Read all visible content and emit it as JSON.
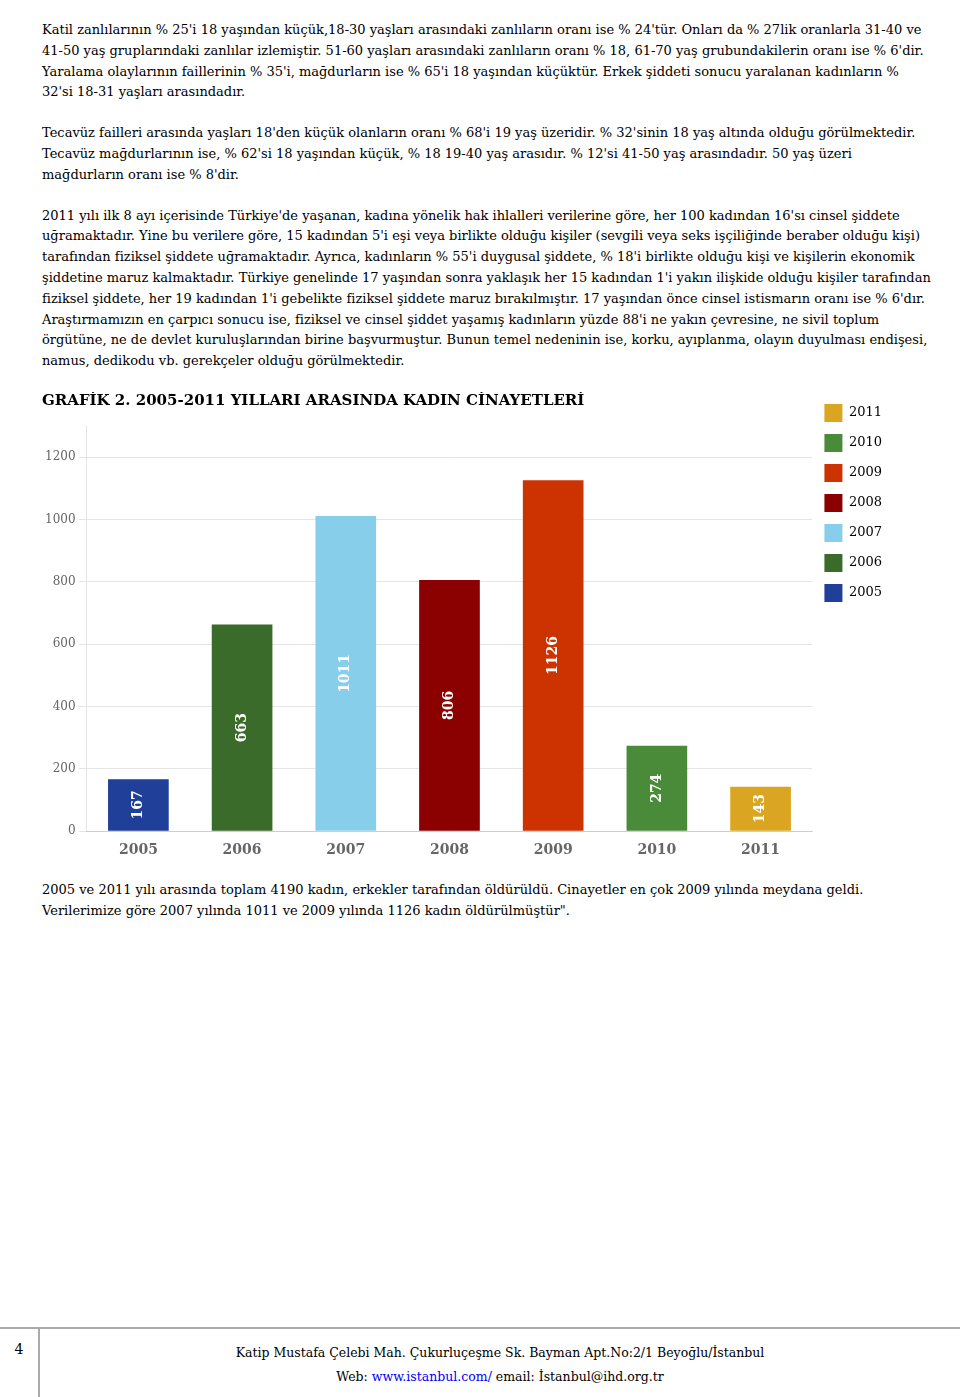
{
  "chart_data": {
    "type": "bar",
    "title": "GRAFİK 2. 2005-2011 YILLARI ARASINDA KADIN CİNAYETLERİ",
    "categories": [
      "2005",
      "2006",
      "2007",
      "2008",
      "2009",
      "2010",
      "2011"
    ],
    "values": [
      167,
      663,
      1011,
      806,
      1126,
      274,
      143
    ],
    "colors": [
      "#1F3F99",
      "#3A6B2A",
      "#87CEEB",
      "#8B0000",
      "#CC3300",
      "#4A8B3A",
      "#DAA520"
    ],
    "ylim": [
      0,
      1300
    ],
    "yticks": [
      0,
      200,
      400,
      600,
      800,
      1000,
      1200
    ],
    "grid": true,
    "data_labels": true,
    "legend": "right",
    "legend_entries": [
      {
        "name": "2011",
        "color": "#DAA520"
      },
      {
        "name": "2010",
        "color": "#4A8B3A"
      },
      {
        "name": "2009",
        "color": "#CC3300"
      },
      {
        "name": "2008",
        "color": "#8B0000"
      },
      {
        "name": "2007",
        "color": "#87CEEB"
      },
      {
        "name": "2006",
        "color": "#3A6B2A"
      },
      {
        "name": "2005",
        "color": "#1F3F99"
      }
    ]
  },
  "page_text": {
    "paragraphs_before": [
      "Katil zanlılarının % 25'i 18 yaşından küçük,18-30 yaşları arasındaki zanlıların oranı ise % 24'tür. Onları da % 27lik oranlarla 31-40 ve 41-50 yaş gruplarındaki zanlılar izlemiştir. 51-60 yaşları arasındaki zanlıların oranı % 18, 61-70 yaş grubundakilerin oranı ise % 6'dir. Yaralama olaylarının faillerinin % 35'i, mağdurların ise % 65'i 18 yaşından küçüktür. Erkek şiddeti sonucu yaralanan kadınların % 32'si 18-31 yaşları arasındadır.",
      "Tecavüz failleri arasında yaşları 18'den küçük olanların oranı % 68'i 19 yaş üzeridir. % 32'sinin 18 yaş altında olduğu görülmektedir. Tecavüz mağdurlarının ise, % 62'si 18 yaşından küçük, % 18 19-40 yaş arasıdır. % 12'si 41-50 yaş arasındadır. 50 yaş üzeri mağdurların oranı ise % 8'dir.",
      "2011 yılı ilk 8 ayı içerisinde Türkiye'de yaşanan, kadına yönelik hak ihlalleri verilerine göre, her 100 kadından 16'sı cinsel şiddete uğramaktadır. Yine bu verilere göre, 15 kadından 5'i eşi veya birlikte olduğu kişiler (sevgili veya seks işçiliğinde beraber olduğu kişi) tarafından fiziksel şiddete uğramaktadır. Ayrıca, kadınların % 55'i duygusal şiddete, % 18'i birlikte olduğu kişi ve kişilerin ekonomik şiddetine maruz kalmaktadır. Türkiye genelinde 17 yaşından sonra yaklaşık her 15 kadından 1'i yakın ilişkide olduğu kişiler tarafından fiziksel şiddete, her 19 kadından 1'i gebelikte fiziksel şiddete maruz bırakılmıştır. 17 yaşından önce cinsel istismarın oranı ise % 6'dır. Araştırmamızın en çarpıcı sonucu ise, fiziksel ve cinsel şiddet yaşamış kadınların yüzde 88'i ne yakın çevresine, ne sivil toplum örgütüne, ne de devlet kuruluşlarından birine başvurmuştur. Bunun temel nedeninin ise, korku, ayıplanma, olayın duyulması endişesi, namus, dedikodu vb. gerekçeler olduğu görülmektedir."
    ],
    "paragraph_after": "2005 ve 2011 yılı arasında toplam 4190 kadın, erkekler tarafından öldürüldü.  Cinayetler en çok 2009 yılında meydana geldi.  Verilerimize göre 2007 yılında 1011 ve 2009 yılında 1126 kadın öldürülmüştür\".",
    "footer_number": "4",
    "footer_line1": "Katip Mustafa Çelebi Mah. Çukurluçeşme Sk. Bayman Apt.No:2/1 Beyоğlu/İstanbul",
    "footer_line2_pre": "Web: ",
    "footer_url": "www.istanbul.com/",
    "footer_line2_post": "  email: İstanbul@ihd.org.tr"
  }
}
